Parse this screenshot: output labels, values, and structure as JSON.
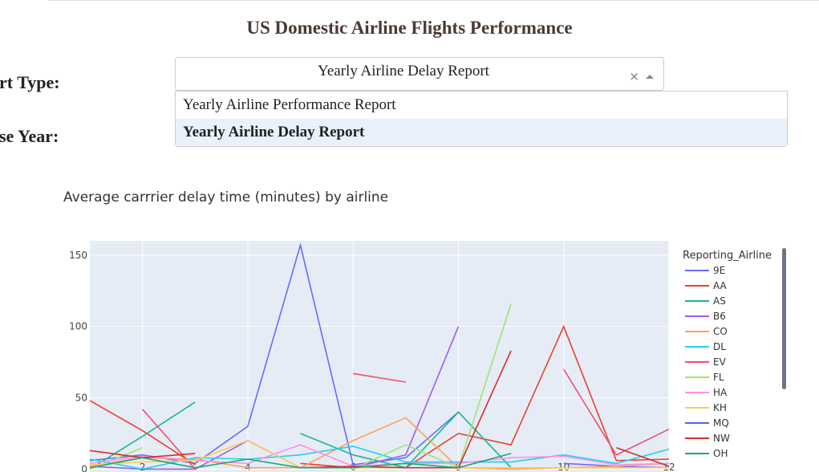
{
  "page": {
    "title": "US Domestic Airline Flights Performance"
  },
  "form": {
    "report_label": "ort Type:",
    "year_label": "ose Year:",
    "select_value": "Yearly Airline Delay Report",
    "options": [
      {
        "label": "Yearly Airline Performance Report",
        "selected": false
      },
      {
        "label": "Yearly Airline Delay Report",
        "selected": true
      }
    ]
  },
  "chart_data": {
    "type": "line",
    "title": "Average carrrier delay time (minutes) by airline",
    "xlim": [
      1,
      12
    ],
    "ylim": [
      -2,
      160
    ],
    "x_ticks": [
      2,
      4,
      6,
      8,
      10,
      12
    ],
    "y_ticks": [
      0,
      50,
      100,
      150
    ],
    "legend_title": "Reporting_Airline",
    "legend_position": "right",
    "series": [
      {
        "name": "9E",
        "color": "#636efa",
        "x": [
          1,
          2,
          3,
          4,
          5,
          6,
          7,
          8,
          9,
          10,
          11,
          12
        ],
        "y": [
          6,
          10,
          4,
          30,
          157,
          3,
          8,
          40,
          null,
          4,
          2,
          1
        ]
      },
      {
        "name": "AA",
        "color": "#e8412c",
        "x": [
          1,
          2,
          3,
          4,
          5,
          6,
          7,
          8,
          9,
          10,
          11,
          12
        ],
        "y": [
          48,
          27,
          3,
          null,
          4,
          1,
          1,
          25,
          17,
          100,
          6,
          7
        ]
      },
      {
        "name": "AS",
        "color": "#19b88c",
        "x": [
          1,
          2,
          3,
          4,
          5,
          6,
          7,
          8,
          9,
          10,
          11,
          12
        ],
        "y": [
          0,
          23,
          47,
          null,
          25,
          10,
          1,
          40,
          1,
          null,
          1,
          1
        ]
      },
      {
        "name": "B6",
        "color": "#a05cf2",
        "x": [
          1,
          2,
          3,
          4,
          5,
          6,
          7,
          8,
          9,
          10,
          11,
          12
        ],
        "y": [
          2,
          0,
          0,
          20,
          1,
          1,
          10,
          100,
          null,
          null,
          null,
          null
        ]
      },
      {
        "name": "CO",
        "color": "#ffa15a",
        "x": [
          1,
          2,
          3,
          4,
          5,
          6,
          7,
          8,
          9,
          10,
          11,
          12
        ],
        "y": [
          2,
          8,
          7,
          1,
          1,
          20,
          36,
          1,
          0,
          1,
          2,
          4
        ]
      },
      {
        "name": "DL",
        "color": "#22d0ee",
        "x": [
          1,
          2,
          3,
          4,
          5,
          6,
          7,
          8,
          9,
          10,
          11,
          12
        ],
        "y": [
          7,
          0,
          8,
          7,
          10,
          16,
          5,
          5,
          5,
          10,
          4,
          14
        ]
      },
      {
        "name": "EV",
        "color": "#f0506e",
        "x": [
          1,
          2,
          3,
          4,
          5,
          6,
          7,
          8,
          9,
          10,
          11,
          12
        ],
        "y": [
          null,
          42,
          0,
          null,
          null,
          67,
          61,
          null,
          null,
          70,
          10,
          28
        ]
      },
      {
        "name": "FL",
        "color": "#a2e36c",
        "x": [
          1,
          2,
          3,
          4,
          5,
          6,
          7,
          8,
          9,
          10,
          11,
          12
        ],
        "y": [
          0,
          15,
          null,
          null,
          null,
          0,
          17,
          1,
          116,
          null,
          null,
          null
        ]
      },
      {
        "name": "HA",
        "color": "#fe8ff2",
        "x": [
          1,
          2,
          3,
          4,
          5,
          6,
          7,
          8,
          9,
          10,
          11,
          12
        ],
        "y": [
          4,
          9,
          6,
          4,
          17,
          2,
          4,
          4,
          8,
          9,
          3,
          4
        ]
      },
      {
        "name": "KH",
        "color": "#fecb52",
        "x": [
          1,
          2,
          3,
          4,
          5,
          6,
          7,
          8,
          9,
          10,
          11,
          12
        ],
        "y": [
          3,
          5,
          6,
          20,
          1,
          1,
          1,
          1,
          1,
          1,
          1,
          1
        ]
      },
      {
        "name": "MQ",
        "color": "#5468d4",
        "x": [
          1,
          2,
          3,
          4,
          5,
          6,
          7,
          8,
          9,
          10,
          11,
          12
        ],
        "y": [
          null,
          null,
          null,
          47,
          null,
          null,
          null,
          null,
          null,
          null,
          null,
          null
        ]
      },
      {
        "name": "NW",
        "color": "#d62d2d",
        "x": [
          1,
          2,
          3,
          4,
          5,
          6,
          7,
          8,
          9,
          10,
          11,
          12
        ],
        "y": [
          13,
          8,
          11,
          null,
          1,
          2,
          1,
          1,
          83,
          null,
          15,
          2
        ]
      },
      {
        "name": "OH",
        "color": "#1aaa6a",
        "x": [
          1,
          2,
          3,
          4,
          5,
          6,
          7,
          8,
          9,
          10,
          11,
          12
        ],
        "y": [
          1,
          8,
          1,
          7,
          1,
          1,
          4,
          1,
          11,
          null,
          null,
          null
        ]
      }
    ]
  }
}
